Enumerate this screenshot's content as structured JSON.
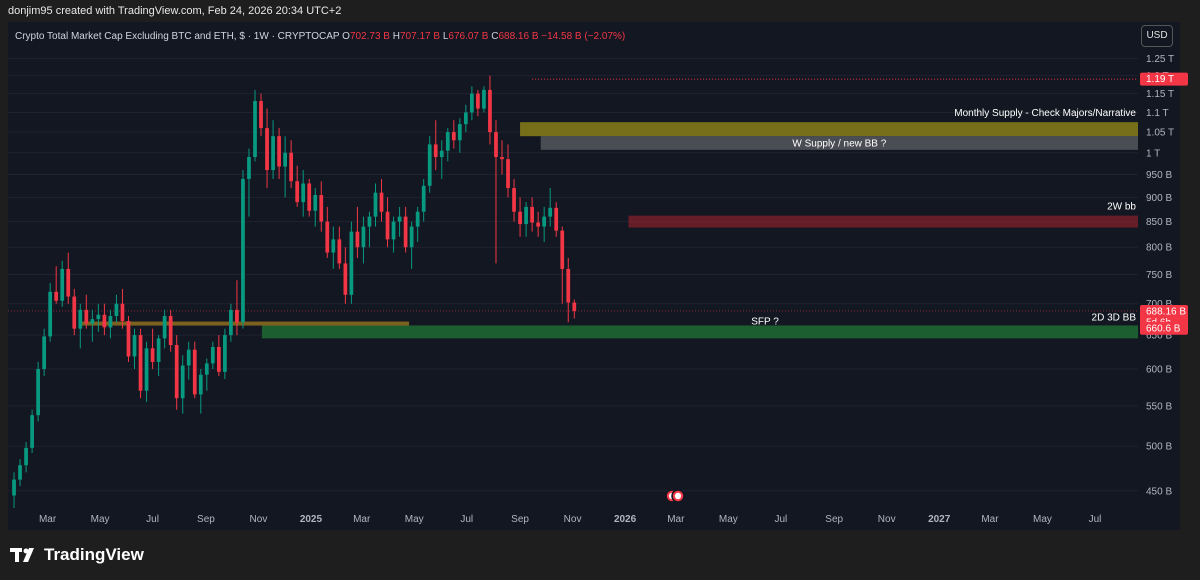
{
  "header": {
    "credit": "donjim95 created with TradingView.com, Feb 24, 2026 20:34 UTC+2"
  },
  "legend": {
    "symbol": "Crypto Total Market Cap Excluding BTC and ETH, $ · 1W · CRYPTOCAP",
    "o_label": "O",
    "o_value": "702.73 B",
    "h_label": "H",
    "h_value": "707.17 B",
    "l_label": "L",
    "l_value": "676.07 B",
    "c_label": "C",
    "c_value": "688.16 B",
    "change": "−14.58 B (−2.07%)"
  },
  "currency_button": "USD",
  "footer": {
    "brand": "TradingView"
  },
  "colors": {
    "up": "#089981",
    "down": "#f23645",
    "background": "#131722",
    "monthly_supply": "#8a7e19",
    "w_supply": "#5f6066",
    "bb_2w": "#7a1f2b",
    "bb_2d3d": "#1f6b33",
    "sr_line": "#8a6a1f"
  },
  "chart_data": {
    "type": "candlestick",
    "y_scale": "log",
    "y_unit": "B",
    "y_range": [
      430,
      1290
    ],
    "y_ticks": [
      {
        "value": 450,
        "label": "450 B"
      },
      {
        "value": 500,
        "label": "500 B"
      },
      {
        "value": 550,
        "label": "550 B"
      },
      {
        "value": 600,
        "label": "600 B"
      },
      {
        "value": 650,
        "label": "650 B"
      },
      {
        "value": 700,
        "label": "700 B"
      },
      {
        "value": 750,
        "label": "750 B"
      },
      {
        "value": 800,
        "label": "800 B"
      },
      {
        "value": 850,
        "label": "850 B"
      },
      {
        "value": 900,
        "label": "900 B"
      },
      {
        "value": 950,
        "label": "950 B"
      },
      {
        "value": 1000,
        "label": "1 T"
      },
      {
        "value": 1050,
        "label": "1.05 T"
      },
      {
        "value": 1100,
        "label": "1.1 T"
      },
      {
        "value": 1150,
        "label": "1.15 T"
      },
      {
        "value": 1200,
        "label": "1.2 T"
      },
      {
        "value": 1250,
        "label": "1.25 T"
      }
    ],
    "x_ticks": [
      {
        "label": "Mar",
        "date": "2024-03-01"
      },
      {
        "label": "May",
        "date": "2024-05-01"
      },
      {
        "label": "Jul",
        "date": "2024-07-01"
      },
      {
        "label": "Sep",
        "date": "2024-09-01"
      },
      {
        "label": "Nov",
        "date": "2024-11-01"
      },
      {
        "label": "2025",
        "date": "2025-01-01",
        "bold": true
      },
      {
        "label": "Mar",
        "date": "2025-03-01"
      },
      {
        "label": "May",
        "date": "2025-05-01"
      },
      {
        "label": "Jul",
        "date": "2025-07-01"
      },
      {
        "label": "Sep",
        "date": "2025-09-01"
      },
      {
        "label": "Nov",
        "date": "2025-11-01"
      },
      {
        "label": "2026",
        "date": "2026-01-01",
        "bold": true
      },
      {
        "label": "Mar",
        "date": "2026-03-01"
      },
      {
        "label": "May",
        "date": "2026-05-01"
      },
      {
        "label": "Jul",
        "date": "2026-07-01"
      },
      {
        "label": "Sep",
        "date": "2026-09-01"
      },
      {
        "label": "Nov",
        "date": "2026-11-01"
      },
      {
        "label": "2027",
        "date": "2027-01-01",
        "bold": true
      },
      {
        "label": "Mar",
        "date": "2027-03-01"
      },
      {
        "label": "May",
        "date": "2027-05-01"
      },
      {
        "label": "Jul",
        "date": "2027-07-01"
      }
    ],
    "x_range": [
      "2024-01-15",
      "2027-08-20"
    ],
    "candle_start": "2024-01-22",
    "candles": [
      [
        445,
        470,
        432,
        462
      ],
      [
        462,
        485,
        455,
        478
      ],
      [
        478,
        505,
        470,
        498
      ],
      [
        498,
        545,
        492,
        538
      ],
      [
        538,
        610,
        530,
        600
      ],
      [
        600,
        660,
        590,
        648
      ],
      [
        648,
        735,
        640,
        720
      ],
      [
        720,
        765,
        700,
        705
      ],
      [
        705,
        775,
        695,
        760
      ],
      [
        760,
        790,
        700,
        712
      ],
      [
        712,
        725,
        650,
        660
      ],
      [
        660,
        700,
        630,
        690
      ],
      [
        690,
        715,
        660,
        668
      ],
      [
        668,
        690,
        640,
        675
      ],
      [
        675,
        700,
        655,
        682
      ],
      [
        682,
        700,
        650,
        662
      ],
      [
        662,
        690,
        645,
        680
      ],
      [
        680,
        715,
        670,
        700
      ],
      [
        700,
        725,
        660,
        672
      ],
      [
        672,
        680,
        610,
        618
      ],
      [
        618,
        660,
        600,
        650
      ],
      [
        650,
        660,
        560,
        570
      ],
      [
        570,
        640,
        555,
        630
      ],
      [
        630,
        660,
        600,
        610
      ],
      [
        610,
        650,
        590,
        645
      ],
      [
        645,
        690,
        630,
        680
      ],
      [
        680,
        690,
        625,
        635
      ],
      [
        635,
        650,
        545,
        560
      ],
      [
        560,
        620,
        540,
        605
      ],
      [
        605,
        640,
        585,
        628
      ],
      [
        628,
        640,
        560,
        565
      ],
      [
        565,
        600,
        540,
        592
      ],
      [
        592,
        615,
        570,
        608
      ],
      [
        608,
        640,
        600,
        632
      ],
      [
        632,
        650,
        590,
        596
      ],
      [
        596,
        660,
        586,
        650
      ],
      [
        650,
        700,
        640,
        690
      ],
      [
        690,
        740,
        650,
        670
      ],
      [
        670,
        960,
        660,
        940
      ],
      [
        940,
        1010,
        860,
        990
      ],
      [
        990,
        1160,
        980,
        1130
      ],
      [
        1130,
        1150,
        1040,
        1060
      ],
      [
        1060,
        1110,
        920,
        960
      ],
      [
        960,
        1080,
        940,
        1040
      ],
      [
        1040,
        1060,
        940,
        968
      ],
      [
        968,
        1040,
        900,
        1000
      ],
      [
        1000,
        1030,
        920,
        935
      ],
      [
        935,
        970,
        880,
        890
      ],
      [
        890,
        960,
        860,
        930
      ],
      [
        930,
        940,
        860,
        872
      ],
      [
        872,
        920,
        840,
        905
      ],
      [
        905,
        935,
        830,
        850
      ],
      [
        850,
        880,
        780,
        790
      ],
      [
        790,
        840,
        760,
        815
      ],
      [
        815,
        840,
        760,
        770
      ],
      [
        770,
        800,
        700,
        715
      ],
      [
        715,
        850,
        700,
        830
      ],
      [
        830,
        880,
        780,
        800
      ],
      [
        800,
        860,
        770,
        840
      ],
      [
        840,
        870,
        800,
        860
      ],
      [
        860,
        930,
        840,
        910
      ],
      [
        910,
        940,
        850,
        870
      ],
      [
        870,
        900,
        800,
        815
      ],
      [
        815,
        860,
        790,
        850
      ],
      [
        850,
        880,
        820,
        860
      ],
      [
        860,
        880,
        790,
        800
      ],
      [
        800,
        850,
        760,
        840
      ],
      [
        840,
        880,
        810,
        870
      ],
      [
        870,
        940,
        850,
        925
      ],
      [
        925,
        1040,
        910,
        1020
      ],
      [
        1020,
        1080,
        960,
        990
      ],
      [
        990,
        1030,
        940,
        1005
      ],
      [
        1005,
        1060,
        980,
        1050
      ],
      [
        1050,
        1080,
        1010,
        1030
      ],
      [
        1030,
        1085,
        1000,
        1070
      ],
      [
        1070,
        1120,
        1050,
        1100
      ],
      [
        1100,
        1170,
        1080,
        1150
      ],
      [
        1150,
        1160,
        1090,
        1110
      ],
      [
        1110,
        1170,
        1100,
        1160
      ],
      [
        1160,
        1200,
        1020,
        1050
      ],
      [
        1050,
        1080,
        770,
        990
      ],
      [
        990,
        1030,
        950,
        985
      ],
      [
        985,
        1020,
        900,
        920
      ],
      [
        920,
        940,
        850,
        870
      ],
      [
        870,
        900,
        820,
        845
      ],
      [
        845,
        890,
        820,
        880
      ],
      [
        880,
        900,
        830,
        848
      ],
      [
        848,
        870,
        820,
        840
      ],
      [
        840,
        880,
        810,
        860
      ],
      [
        860,
        920,
        840,
        878
      ],
      [
        878,
        890,
        820,
        832
      ],
      [
        832,
        840,
        700,
        760
      ],
      [
        760,
        780,
        670,
        702
      ],
      [
        702,
        707,
        676,
        688
      ]
    ],
    "annotations": [
      {
        "label": "Monthly Supply - Check Majors/Narrative",
        "type": "zone",
        "from_date": "2025-09-01",
        "y1": 1075,
        "y2": 1040,
        "color": "monthly_supply"
      },
      {
        "label": "W Supply / new BB ?",
        "type": "zone",
        "from_date": "2025-09-25",
        "y1": 1040,
        "y2": 1007,
        "color": "w_supply"
      },
      {
        "label": "2W bb",
        "type": "zone",
        "from_date": "2026-01-05",
        "y1": 862,
        "y2": 838,
        "color": "bb_2w"
      },
      {
        "label": "2D 3D BB",
        "type": "zone",
        "from_date": "2024-11-05",
        "y1": 665,
        "y2": 645,
        "color": "bb_2d3d"
      },
      {
        "label": "SFP ?",
        "type": "level",
        "from_date": "2025-04-20",
        "y": 662
      }
    ],
    "sr_line": {
      "from_date": "2024-04-10",
      "to_date": "2025-04-25",
      "y": 668
    },
    "high_line": {
      "from_date": "2025-09-15",
      "y": 1190
    },
    "price_labels": [
      {
        "value": 1190,
        "label": "1.19 T"
      },
      {
        "value": 688.16,
        "label": "688.16 B",
        "sub": "5d 6h"
      },
      {
        "value": 660.6,
        "label": "660.6 B"
      }
    ]
  }
}
